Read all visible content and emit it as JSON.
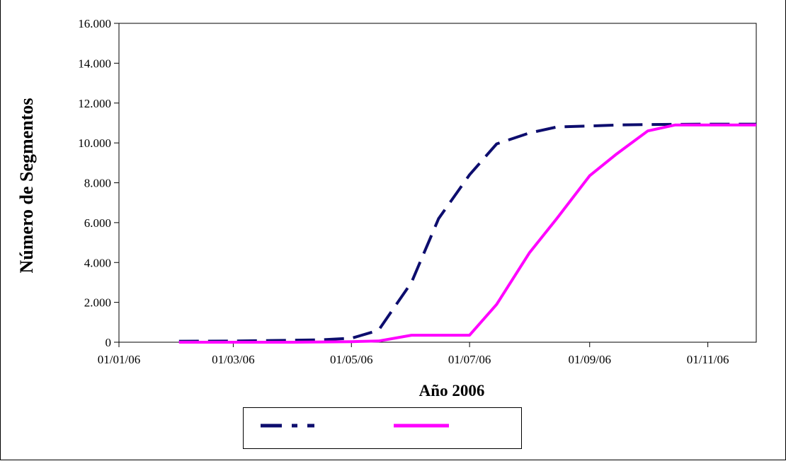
{
  "chart_data": {
    "type": "line",
    "title": "",
    "xlabel": "Año 2006",
    "ylabel": "Número de Segmentos",
    "x_type": "date",
    "xlim": [
      "2006-01-01",
      "2006-11-26"
    ],
    "ylim": [
      0,
      16000
    ],
    "x_ticks": [
      "01/01/06",
      "01/03/06",
      "01/05/06",
      "01/07/06",
      "01/09/06",
      "01/11/06"
    ],
    "y_ticks": [
      "0",
      "2.000",
      "4.000",
      "6.000",
      "8.000",
      "10.000",
      "12.000",
      "14.000",
      "16.000"
    ],
    "grid": false,
    "legend_position": "bottom",
    "series": [
      {
        "color": "#0d0d6e",
        "style": "dashed",
        "points": [
          [
            "2006-02-01",
            50
          ],
          [
            "2006-03-01",
            60
          ],
          [
            "2006-04-01",
            100
          ],
          [
            "2006-04-15",
            120
          ],
          [
            "2006-05-01",
            200
          ],
          [
            "2006-05-15",
            600
          ],
          [
            "2006-06-01",
            3000
          ],
          [
            "2006-06-15",
            6200
          ],
          [
            "2006-07-01",
            8400
          ],
          [
            "2006-07-15",
            9950
          ],
          [
            "2006-08-01",
            10500
          ],
          [
            "2006-08-15",
            10800
          ],
          [
            "2006-09-01",
            10850
          ],
          [
            "2006-09-15",
            10900
          ],
          [
            "2006-10-01",
            10920
          ],
          [
            "2006-10-15",
            10930
          ],
          [
            "2006-11-01",
            10940
          ],
          [
            "2006-11-15",
            10940
          ],
          [
            "2006-11-26",
            10940
          ]
        ]
      },
      {
        "color": "#ff00ff",
        "style": "solid",
        "points": [
          [
            "2006-02-01",
            0
          ],
          [
            "2006-03-01",
            0
          ],
          [
            "2006-04-01",
            0
          ],
          [
            "2006-05-01",
            30
          ],
          [
            "2006-05-15",
            60
          ],
          [
            "2006-06-01",
            350
          ],
          [
            "2006-06-15",
            350
          ],
          [
            "2006-07-01",
            350
          ],
          [
            "2006-07-15",
            1900
          ],
          [
            "2006-08-01",
            4500
          ],
          [
            "2006-08-15",
            6200
          ],
          [
            "2006-09-01",
            8350
          ],
          [
            "2006-09-15",
            9450
          ],
          [
            "2006-10-01",
            10600
          ],
          [
            "2006-10-15",
            10900
          ],
          [
            "2006-11-01",
            10900
          ],
          [
            "2006-11-15",
            10900
          ],
          [
            "2006-11-26",
            10900
          ]
        ]
      }
    ]
  }
}
